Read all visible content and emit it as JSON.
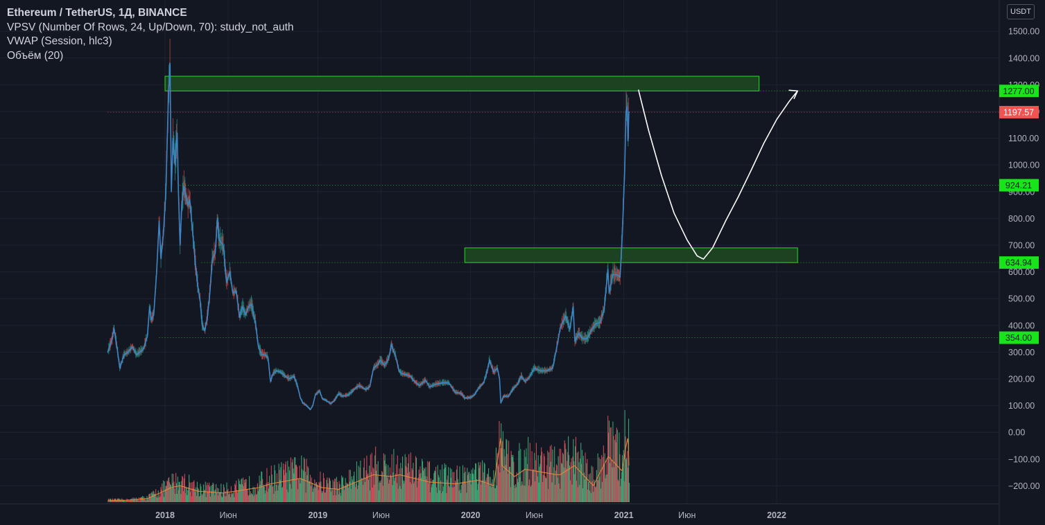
{
  "legend": {
    "symbol": "Ethereum / TetherUS, 1Д, BINANCE",
    "vpsv": "VPSV (Number Of Rows, 24, Up/Down, 70): study_not_auth",
    "vwap": "VWAP (Session, hlc3)",
    "volume": "Объём (20)"
  },
  "currency_button": "USDT",
  "colors": {
    "background": "#131722",
    "grid": "#1f2331",
    "price_line": "#3d85c6",
    "up": "#26a69a",
    "down": "#ef5350",
    "vol_up": "#3fae7a",
    "vol_down": "#d9515e",
    "zone_fill": "#1e4a22",
    "zone_border": "#19e31b",
    "level_label": "#19e31b",
    "current_label": "#f05350"
  },
  "chart_data": {
    "type": "line",
    "title": "Ethereum / TetherUS, 1Д, BINANCE",
    "ylim": [
      -200,
      1500
    ],
    "yticks": [
      -200,
      -100,
      0,
      100,
      200,
      300,
      400,
      500,
      600,
      700,
      800,
      900,
      1000,
      1100,
      1200,
      1300,
      1400,
      1500
    ],
    "ytick_labels": [
      "−200.00",
      "−100.00",
      "0.00",
      "100.00",
      "200.00",
      "300.00",
      "400.00",
      "500.00",
      "600.00",
      "700.00",
      "800.00",
      "900.00",
      "1000.00",
      "1100.00",
      "1200.00",
      "1300.00",
      "1400.00",
      "1500.00"
    ],
    "xlim": [
      "2017-08-17",
      "2022-11-20"
    ],
    "xticks": [
      {
        "date": "2018-01-01",
        "label": "2018",
        "bold": true
      },
      {
        "date": "2018-06-01",
        "label": "Июн",
        "bold": false
      },
      {
        "date": "2019-01-01",
        "label": "2019",
        "bold": true
      },
      {
        "date": "2019-06-01",
        "label": "Июн",
        "bold": false
      },
      {
        "date": "2020-01-01",
        "label": "2020",
        "bold": true
      },
      {
        "date": "2020-06-01",
        "label": "Июн",
        "bold": false
      },
      {
        "date": "2021-01-01",
        "label": "2021",
        "bold": true
      },
      {
        "date": "2021-06-01",
        "label": "Июн",
        "bold": false
      },
      {
        "date": "2022-01-01",
        "label": "2022",
        "bold": true
      }
    ],
    "price_series": {
      "name": "ETHUSDT",
      "points": [
        [
          "2017-08-17",
          300
        ],
        [
          "2017-08-28",
          350
        ],
        [
          "2017-09-01",
          390
        ],
        [
          "2017-09-08",
          320
        ],
        [
          "2017-09-15",
          240
        ],
        [
          "2017-09-25",
          290
        ],
        [
          "2017-10-05",
          300
        ],
        [
          "2017-10-15",
          320
        ],
        [
          "2017-10-25",
          290
        ],
        [
          "2017-11-01",
          300
        ],
        [
          "2017-11-10",
          310
        ],
        [
          "2017-11-20",
          360
        ],
        [
          "2017-11-25",
          470
        ],
        [
          "2017-11-29",
          420
        ],
        [
          "2017-12-05",
          440
        ],
        [
          "2017-12-12",
          600
        ],
        [
          "2017-12-18",
          790
        ],
        [
          "2017-12-22",
          650
        ],
        [
          "2017-12-28",
          740
        ],
        [
          "2018-01-03",
          900
        ],
        [
          "2018-01-09",
          1250
        ],
        [
          "2018-01-13",
          1380
        ],
        [
          "2018-01-16",
          900
        ],
        [
          "2018-01-20",
          1100
        ],
        [
          "2018-01-25",
          1000
        ],
        [
          "2018-01-30",
          1120
        ],
        [
          "2018-02-02",
          900
        ],
        [
          "2018-02-06",
          700
        ],
        [
          "2018-02-10",
          850
        ],
        [
          "2018-02-15",
          920
        ],
        [
          "2018-02-20",
          880
        ],
        [
          "2018-02-25",
          850
        ],
        [
          "2018-03-01",
          870
        ],
        [
          "2018-03-08",
          750
        ],
        [
          "2018-03-15",
          620
        ],
        [
          "2018-03-20",
          550
        ],
        [
          "2018-03-26",
          490
        ],
        [
          "2018-03-31",
          400
        ],
        [
          "2018-04-06",
          380
        ],
        [
          "2018-04-12",
          430
        ],
        [
          "2018-04-18",
          520
        ],
        [
          "2018-04-24",
          650
        ],
        [
          "2018-05-01",
          670
        ],
        [
          "2018-05-06",
          800
        ],
        [
          "2018-05-10",
          720
        ],
        [
          "2018-05-20",
          700
        ],
        [
          "2018-05-28",
          560
        ],
        [
          "2018-06-05",
          600
        ],
        [
          "2018-06-12",
          520
        ],
        [
          "2018-06-20",
          530
        ],
        [
          "2018-06-28",
          430
        ],
        [
          "2018-07-05",
          470
        ],
        [
          "2018-07-12",
          440
        ],
        [
          "2018-07-20",
          470
        ],
        [
          "2018-07-26",
          480
        ],
        [
          "2018-08-05",
          410
        ],
        [
          "2018-08-12",
          320
        ],
        [
          "2018-08-20",
          290
        ],
        [
          "2018-08-28",
          290
        ],
        [
          "2018-09-04",
          280
        ],
        [
          "2018-09-10",
          190
        ],
        [
          "2018-09-16",
          220
        ],
        [
          "2018-09-24",
          230
        ],
        [
          "2018-10-05",
          225
        ],
        [
          "2018-10-15",
          210
        ],
        [
          "2018-10-25",
          200
        ],
        [
          "2018-11-05",
          210
        ],
        [
          "2018-11-14",
          170
        ],
        [
          "2018-11-20",
          130
        ],
        [
          "2018-11-26",
          110
        ],
        [
          "2018-12-05",
          100
        ],
        [
          "2018-12-14",
          85
        ],
        [
          "2018-12-20",
          100
        ],
        [
          "2018-12-26",
          140
        ],
        [
          "2019-01-05",
          155
        ],
        [
          "2019-01-12",
          125
        ],
        [
          "2019-01-20",
          120
        ],
        [
          "2019-02-01",
          107
        ],
        [
          "2019-02-10",
          120
        ],
        [
          "2019-02-20",
          145
        ],
        [
          "2019-03-01",
          135
        ],
        [
          "2019-03-15",
          140
        ],
        [
          "2019-04-01",
          165
        ],
        [
          "2019-04-10",
          175
        ],
        [
          "2019-04-25",
          160
        ],
        [
          "2019-05-05",
          170
        ],
        [
          "2019-05-14",
          240
        ],
        [
          "2019-05-25",
          255
        ],
        [
          "2019-05-30",
          270
        ],
        [
          "2019-06-10",
          250
        ],
        [
          "2019-06-20",
          280
        ],
        [
          "2019-06-26",
          330
        ],
        [
          "2019-06-29",
          310
        ],
        [
          "2019-07-05",
          290
        ],
        [
          "2019-07-14",
          230
        ],
        [
          "2019-07-20",
          220
        ],
        [
          "2019-08-01",
          215
        ],
        [
          "2019-08-10",
          210
        ],
        [
          "2019-08-20",
          190
        ],
        [
          "2019-09-01",
          175
        ],
        [
          "2019-09-15",
          195
        ],
        [
          "2019-09-25",
          170
        ],
        [
          "2019-10-10",
          180
        ],
        [
          "2019-10-26",
          185
        ],
        [
          "2019-11-10",
          185
        ],
        [
          "2019-11-25",
          150
        ],
        [
          "2019-12-10",
          145
        ],
        [
          "2019-12-18",
          128
        ],
        [
          "2020-01-01",
          130
        ],
        [
          "2020-01-10",
          140
        ],
        [
          "2020-01-20",
          165
        ],
        [
          "2020-02-01",
          185
        ],
        [
          "2020-02-10",
          230
        ],
        [
          "2020-02-15",
          270
        ],
        [
          "2020-02-25",
          225
        ],
        [
          "2020-03-05",
          240
        ],
        [
          "2020-03-10",
          200
        ],
        [
          "2020-03-13",
          110
        ],
        [
          "2020-03-20",
          135
        ],
        [
          "2020-04-01",
          135
        ],
        [
          "2020-04-10",
          160
        ],
        [
          "2020-04-22",
          180
        ],
        [
          "2020-05-01",
          210
        ],
        [
          "2020-05-10",
          190
        ],
        [
          "2020-05-20",
          205
        ],
        [
          "2020-06-01",
          240
        ],
        [
          "2020-06-15",
          230
        ],
        [
          "2020-07-01",
          230
        ],
        [
          "2020-07-15",
          240
        ],
        [
          "2020-07-25",
          320
        ],
        [
          "2020-08-02",
          390
        ],
        [
          "2020-08-15",
          435
        ],
        [
          "2020-08-25",
          385
        ],
        [
          "2020-09-02",
          470
        ],
        [
          "2020-09-06",
          340
        ],
        [
          "2020-09-15",
          370
        ],
        [
          "2020-09-25",
          350
        ],
        [
          "2020-10-05",
          350
        ],
        [
          "2020-10-15",
          380
        ],
        [
          "2020-10-25",
          405
        ],
        [
          "2020-11-05",
          410
        ],
        [
          "2020-11-15",
          460
        ],
        [
          "2020-11-24",
          610
        ],
        [
          "2020-11-27",
          520
        ],
        [
          "2020-12-05",
          590
        ],
        [
          "2020-12-15",
          590
        ],
        [
          "2020-12-23",
          580
        ],
        [
          "2020-12-28",
          730
        ],
        [
          "2021-01-03",
          980
        ],
        [
          "2021-01-06",
          1200
        ],
        [
          "2021-01-09",
          1220
        ],
        [
          "2021-01-11",
          1090
        ],
        [
          "2021-01-13",
          1200
        ]
      ]
    },
    "volume_series": {
      "name": "Объём (20)",
      "ylim": [
        0,
        100
      ],
      "points": [
        [
          "2017-08-17",
          2
        ],
        [
          "2017-10-01",
          2
        ],
        [
          "2017-11-20",
          4
        ],
        [
          "2017-12-20",
          10
        ],
        [
          "2018-01-16",
          16
        ],
        [
          "2018-02-06",
          18
        ],
        [
          "2018-03-20",
          12
        ],
        [
          "2018-05-20",
          10
        ],
        [
          "2018-08-14",
          16
        ],
        [
          "2018-09-10",
          20
        ],
        [
          "2018-11-20",
          26
        ],
        [
          "2019-01-10",
          16
        ],
        [
          "2019-02-20",
          14
        ],
        [
          "2019-05-14",
          30
        ],
        [
          "2019-06-26",
          28
        ],
        [
          "2019-07-15",
          30
        ],
        [
          "2019-09-24",
          22
        ],
        [
          "2019-11-25",
          20
        ],
        [
          "2020-01-20",
          24
        ],
        [
          "2020-02-25",
          18
        ],
        [
          "2020-03-13",
          70
        ],
        [
          "2020-03-16",
          40
        ],
        [
          "2020-04-15",
          28
        ],
        [
          "2020-05-10",
          36
        ],
        [
          "2020-07-25",
          30
        ],
        [
          "2020-08-02",
          30
        ],
        [
          "2020-09-05",
          40
        ],
        [
          "2020-10-20",
          18
        ],
        [
          "2020-11-25",
          50
        ],
        [
          "2020-12-28",
          34
        ],
        [
          "2021-01-04",
          56
        ],
        [
          "2021-01-11",
          72
        ],
        [
          "2021-01-13",
          40
        ]
      ]
    },
    "zones": [
      {
        "from": "2018-01-01",
        "to": "2021-11-20",
        "low": 1277,
        "high": 1332
      },
      {
        "from": "2019-12-18",
        "to": "2022-02-20",
        "low": 634.94,
        "high": 690
      }
    ],
    "levels": [
      {
        "value": 1277.0,
        "label": "1277.00",
        "from": "2018-01-05"
      },
      {
        "value": 1197.57,
        "label": "1197.57",
        "from": "2017-08-17",
        "current": true
      },
      {
        "value": 924.21,
        "label": "924.21",
        "from": "2018-02-05"
      },
      {
        "value": 634.94,
        "label": "634.94",
        "from": "2018-03-29"
      },
      {
        "value": 354.0,
        "label": "354.00",
        "from": "2017-12-18"
      }
    ],
    "projection": {
      "points": [
        [
          "2021-02-05",
          1280
        ],
        [
          "2021-03-01",
          1130
        ],
        [
          "2021-04-01",
          960
        ],
        [
          "2021-05-01",
          820
        ],
        [
          "2021-06-01",
          720
        ],
        [
          "2021-06-25",
          660
        ],
        [
          "2021-07-10",
          648
        ],
        [
          "2021-08-01",
          690
        ],
        [
          "2021-09-01",
          790
        ],
        [
          "2021-10-01",
          880
        ],
        [
          "2021-11-01",
          980
        ],
        [
          "2021-12-01",
          1080
        ],
        [
          "2022-01-01",
          1170
        ],
        [
          "2022-02-01",
          1240
        ],
        [
          "2022-02-20",
          1277
        ]
      ]
    }
  }
}
